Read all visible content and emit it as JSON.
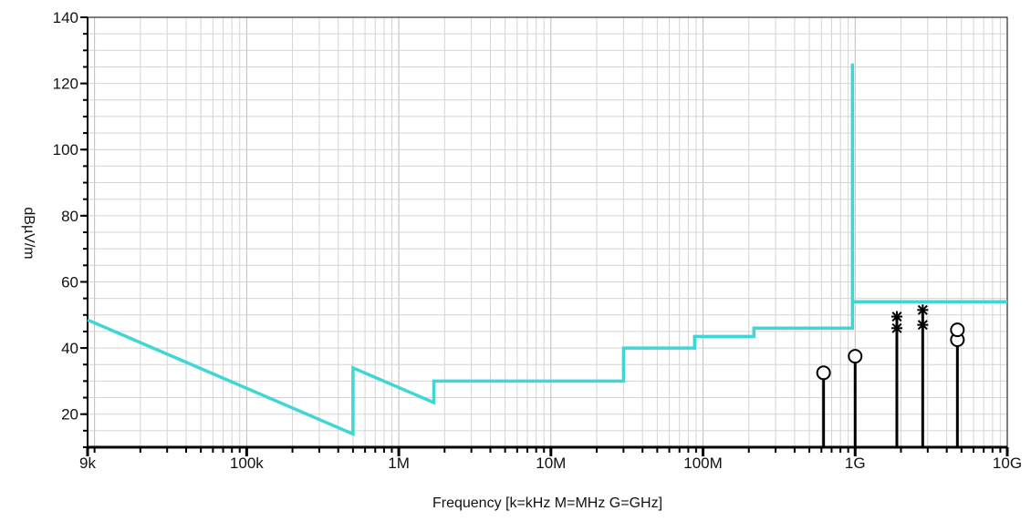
{
  "chart_data": {
    "type": "line",
    "title": "",
    "xlabel": "Frequency [k=kHz M=MHz G=GHz]",
    "ylabel": "dBµV/m",
    "x_scale": "log",
    "xlim": [
      9000,
      10000000000
    ],
    "ylim": [
      10,
      140
    ],
    "grid": true,
    "x_ticks": [
      {
        "value": 9000,
        "label": "9k"
      },
      {
        "value": 100000,
        "label": "100k"
      },
      {
        "value": 1000000,
        "label": "1M"
      },
      {
        "value": 10000000,
        "label": "10M"
      },
      {
        "value": 100000000,
        "label": "100M"
      },
      {
        "value": 1000000000,
        "label": "1G"
      },
      {
        "value": 10000000000,
        "label": "10G"
      }
    ],
    "y_ticks": [
      {
        "value": 20,
        "label": "20"
      },
      {
        "value": 40,
        "label": "40"
      },
      {
        "value": 60,
        "label": "60"
      },
      {
        "value": 80,
        "label": "80"
      },
      {
        "value": 100,
        "label": "100"
      },
      {
        "value": 120,
        "label": "120"
      },
      {
        "value": 140,
        "label": "140"
      }
    ],
    "limit_line": {
      "color": "#3fd6d6",
      "points": [
        {
          "x": 9000,
          "y": 48.5
        },
        {
          "x": 500000,
          "y": 14
        },
        {
          "x": 500000,
          "y": 34
        },
        {
          "x": 1700000,
          "y": 23.5
        },
        {
          "x": 1700000,
          "y": 30
        },
        {
          "x": 30000000,
          "y": 30
        },
        {
          "x": 30000000,
          "y": 40
        },
        {
          "x": 88000000,
          "y": 40
        },
        {
          "x": 88000000,
          "y": 43.5
        },
        {
          "x": 216000000,
          "y": 43.5
        },
        {
          "x": 216000000,
          "y": 46
        },
        {
          "x": 960000000,
          "y": 46
        },
        {
          "x": 960000000,
          "y": 126
        },
        {
          "x": 960000000,
          "y": 54
        },
        {
          "x": 10000000000,
          "y": 54
        }
      ]
    },
    "measurements": [
      {
        "x": 620000000,
        "y": 32.5,
        "marker": "circle"
      },
      {
        "x": 1000000000,
        "y": 37.5,
        "marker": "circle"
      },
      {
        "x": 1880000000,
        "y": 46,
        "marker": "star"
      },
      {
        "x": 1880000000,
        "y": 49.5,
        "marker": "star"
      },
      {
        "x": 2780000000,
        "y": 47,
        "marker": "star"
      },
      {
        "x": 2780000000,
        "y": 51.5,
        "marker": "star"
      },
      {
        "x": 4700000000,
        "y": 42.5,
        "marker": "circle"
      },
      {
        "x": 4700000000,
        "y": 45.5,
        "marker": "circle"
      }
    ],
    "measurement_color": "#000000"
  }
}
